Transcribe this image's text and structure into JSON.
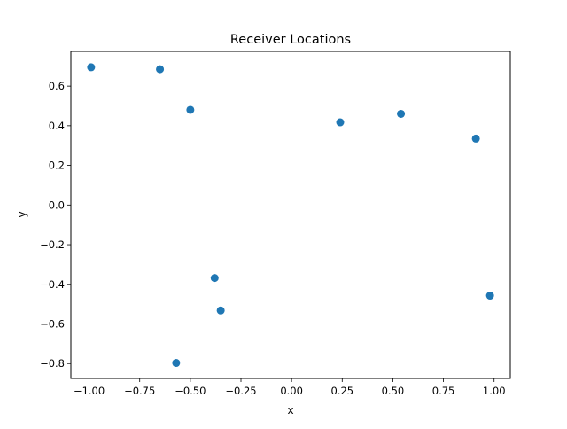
{
  "chart_data": {
    "type": "scatter",
    "title": "Receiver Locations",
    "xlabel": "x",
    "ylabel": "y",
    "xlim": [
      -1.09,
      1.08
    ],
    "ylim": [
      -0.875,
      0.775
    ],
    "x_ticks": [
      -1.0,
      -0.75,
      -0.5,
      -0.25,
      0.0,
      0.25,
      0.5,
      0.75,
      1.0
    ],
    "x_tick_labels": [
      "−1.00",
      "−0.75",
      "−0.50",
      "−0.25",
      "0.00",
      "0.25",
      "0.50",
      "0.75",
      "1.00"
    ],
    "y_ticks": [
      -0.8,
      -0.6,
      -0.4,
      -0.2,
      0.0,
      0.2,
      0.4,
      0.6
    ],
    "y_tick_labels": [
      "−0.8",
      "−0.6",
      "−0.4",
      "−0.2",
      "0.0",
      "0.2",
      "0.4",
      "0.6"
    ],
    "grid": false,
    "marker_color": "#1f77b4",
    "series": [
      {
        "x": [
          -0.99,
          -0.65,
          -0.5,
          0.24,
          0.54,
          0.91,
          -0.38,
          -0.35,
          -0.57,
          0.98
        ],
        "y": [
          0.695,
          0.685,
          0.48,
          0.417,
          0.46,
          0.335,
          -0.368,
          -0.532,
          -0.797,
          -0.457
        ]
      }
    ]
  }
}
